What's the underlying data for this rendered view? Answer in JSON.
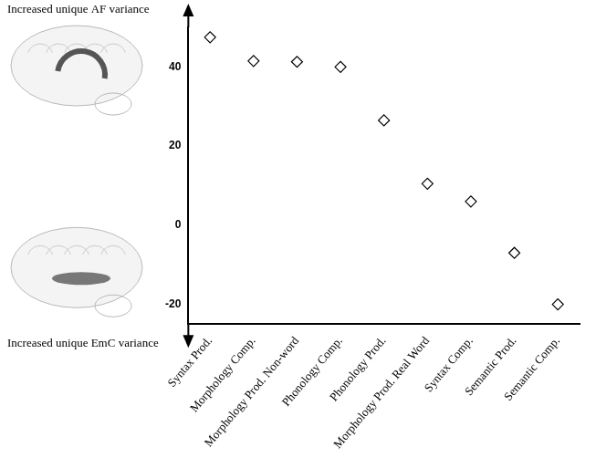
{
  "chart_data": {
    "type": "scatter",
    "y_axis_labels": {
      "top": "Increased unique AF variance",
      "bottom": "Increased unique EmC variance"
    },
    "categories": [
      "Syntax Prod.",
      "Morphology Comp.",
      "Morphology Prod. Non-word",
      "Phonology Comp.",
      "Phonology Prod.",
      "Morphology Prod. Real Word",
      "Syntax Comp.",
      "Semantic Prod.",
      "Semantic Comp."
    ],
    "values": [
      47.5,
      41.5,
      41.3,
      40,
      26.5,
      10.5,
      6,
      -7,
      -20
    ],
    "color": "#000000",
    "marker": "diamond",
    "ylim": [
      -25,
      50
    ],
    "yticks": [
      -20,
      0,
      20,
      40
    ],
    "grid": false
  }
}
